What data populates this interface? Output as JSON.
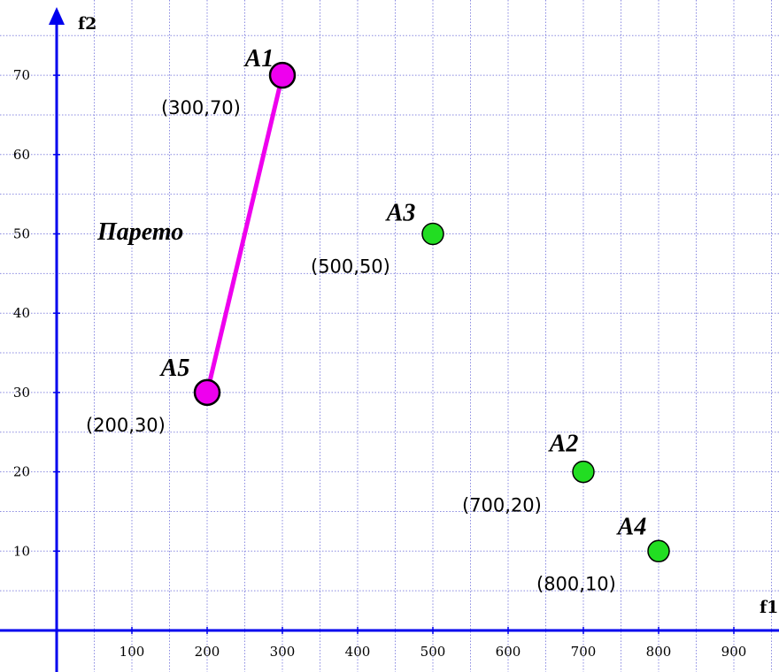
{
  "chart_data": {
    "type": "scatter",
    "xlabel": "f1",
    "ylabel": "f2",
    "grid": true,
    "xlim": [
      -30,
      950
    ],
    "ylim": [
      -6,
      80
    ],
    "x_ticks": [
      100,
      200,
      300,
      400,
      500,
      600,
      700,
      800,
      900
    ],
    "y_ticks": [
      10,
      20,
      30,
      40,
      50,
      60,
      70
    ],
    "points": [
      {
        "name": "A1",
        "label": "(300,70)",
        "x": 300,
        "y": 70,
        "color": "#ee00ee"
      },
      {
        "name": "A2",
        "label": "(700,20)",
        "x": 700,
        "y": 20,
        "color": "#22dd22"
      },
      {
        "name": "A3",
        "label": "(500,50)",
        "x": 500,
        "y": 50,
        "color": "#22dd22"
      },
      {
        "name": "A4",
        "label": "(800,10)",
        "x": 800,
        "y": 10,
        "color": "#22dd22"
      },
      {
        "name": "A5",
        "label": "(200,30)",
        "x": 200,
        "y": 30,
        "color": "#ee00ee"
      }
    ],
    "pareto_front": {
      "label": "Парето",
      "points": [
        "A5",
        "A1"
      ],
      "color": "#ee00ee"
    },
    "axis_color": "#0000ee",
    "grid_color": "#8a8ae0"
  }
}
